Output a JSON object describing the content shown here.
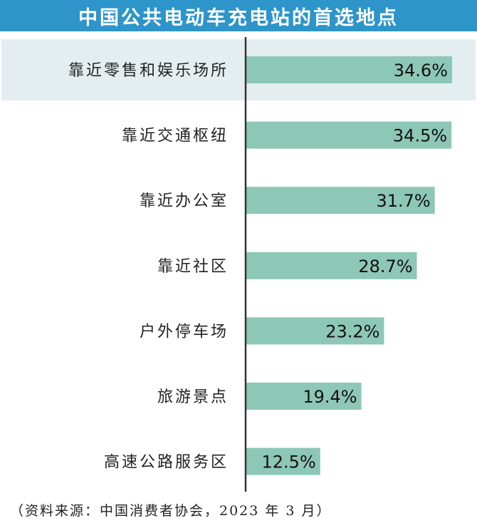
{
  "title": "中国公共电动车充电站的首选地点",
  "source": "（资料来源：中国消费者协会，2023 年 3 月）",
  "colors": {
    "header": "#2d95c9",
    "bar": "#8dc7b5",
    "highlight": "#e4eef1",
    "axis": "#333333"
  },
  "chart_data": {
    "type": "bar",
    "orientation": "horizontal",
    "title": "中国公共电动车充电站的首选地点",
    "categories": [
      "靠近零售和娱乐场所",
      "靠近交通枢纽",
      "靠近办公室",
      "靠近社区",
      "户外停车场",
      "旅游景点",
      "高速公路服务区"
    ],
    "values": [
      34.6,
      34.5,
      31.7,
      28.7,
      23.2,
      19.4,
      12.5
    ],
    "labels": [
      "34.6%",
      "34.5%",
      "31.7%",
      "28.7%",
      "23.2%",
      "19.4%",
      "12.5%"
    ],
    "unit": "%",
    "highlighted_category": "靠近零售和娱乐场所",
    "grid": false,
    "legend": "none"
  }
}
